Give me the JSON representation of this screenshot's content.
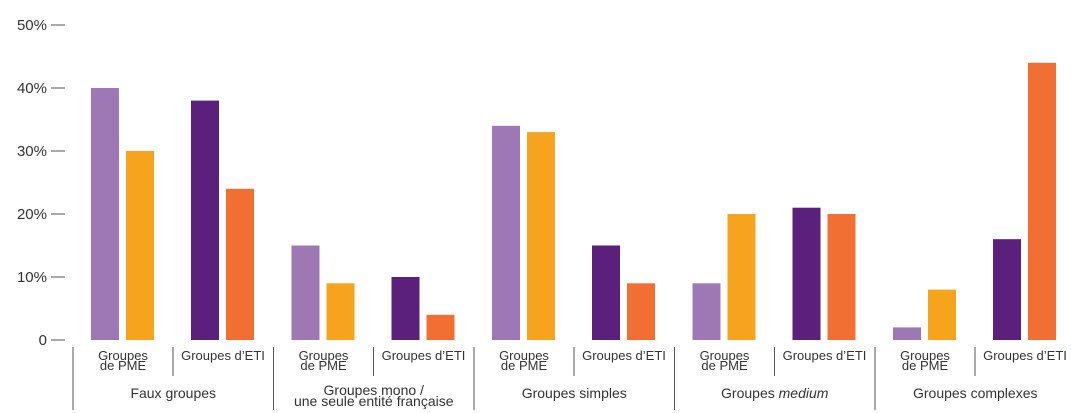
{
  "chart_data": {
    "type": "bar",
    "yticks": [
      "0",
      "10%",
      "20%",
      "30%",
      "40%",
      "50%"
    ],
    "ylim": [
      0,
      50
    ],
    "groups": [
      {
        "label_lines": [
          "Faux groupes"
        ],
        "subgroups": [
          {
            "label_lines": [
              "Groupes",
              "de PME"
            ],
            "bars": [
              {
                "value": 40,
                "color": "#9e78b4"
              },
              {
                "value": 30,
                "color": "#f6a31d"
              }
            ]
          },
          {
            "label_lines": [
              "Groupes d’ETI"
            ],
            "bars": [
              {
                "value": 38,
                "color": "#5b1f7c"
              },
              {
                "value": 24,
                "color": "#f26f33"
              }
            ]
          }
        ]
      },
      {
        "label_lines": [
          "Groupes mono /",
          "une seule entité française"
        ],
        "subgroups": [
          {
            "label_lines": [
              "Groupes",
              "de PME"
            ],
            "bars": [
              {
                "value": 15,
                "color": "#9e78b4"
              },
              {
                "value": 9,
                "color": "#f6a31d"
              }
            ]
          },
          {
            "label_lines": [
              "Groupes d’ETI"
            ],
            "bars": [
              {
                "value": 10,
                "color": "#5b1f7c"
              },
              {
                "value": 4,
                "color": "#f26f33"
              }
            ]
          }
        ]
      },
      {
        "label_lines": [
          "Groupes simples"
        ],
        "subgroups": [
          {
            "label_lines": [
              "Groupes",
              "de PME"
            ],
            "bars": [
              {
                "value": 34,
                "color": "#9e78b4"
              },
              {
                "value": 33,
                "color": "#f6a31d"
              }
            ]
          },
          {
            "label_lines": [
              "Groupes d’ETI"
            ],
            "bars": [
              {
                "value": 15,
                "color": "#5b1f7c"
              },
              {
                "value": 9,
                "color": "#f26f33"
              }
            ]
          }
        ]
      },
      {
        "label_prefix": "Groupes ",
        "label_em": "medium",
        "subgroups": [
          {
            "label_lines": [
              "Groupes",
              "de PME"
            ],
            "bars": [
              {
                "value": 9,
                "color": "#9e78b4"
              },
              {
                "value": 20,
                "color": "#f6a31d"
              }
            ]
          },
          {
            "label_lines": [
              "Groupes d’ETI"
            ],
            "bars": [
              {
                "value": 21,
                "color": "#5b1f7c"
              },
              {
                "value": 20,
                "color": "#f26f33"
              }
            ]
          }
        ]
      },
      {
        "label_lines": [
          "Groupes complexes"
        ],
        "subgroups": [
          {
            "label_lines": [
              "Groupes",
              "de PME"
            ],
            "bars": [
              {
                "value": 2,
                "color": "#9e78b4"
              },
              {
                "value": 8,
                "color": "#f6a31d"
              }
            ]
          },
          {
            "label_lines": [
              "Groupes d’ETI"
            ],
            "bars": [
              {
                "value": 16,
                "color": "#5b1f7c"
              },
              {
                "value": 44,
                "color": "#f26f33"
              }
            ]
          }
        ]
      }
    ]
  }
}
